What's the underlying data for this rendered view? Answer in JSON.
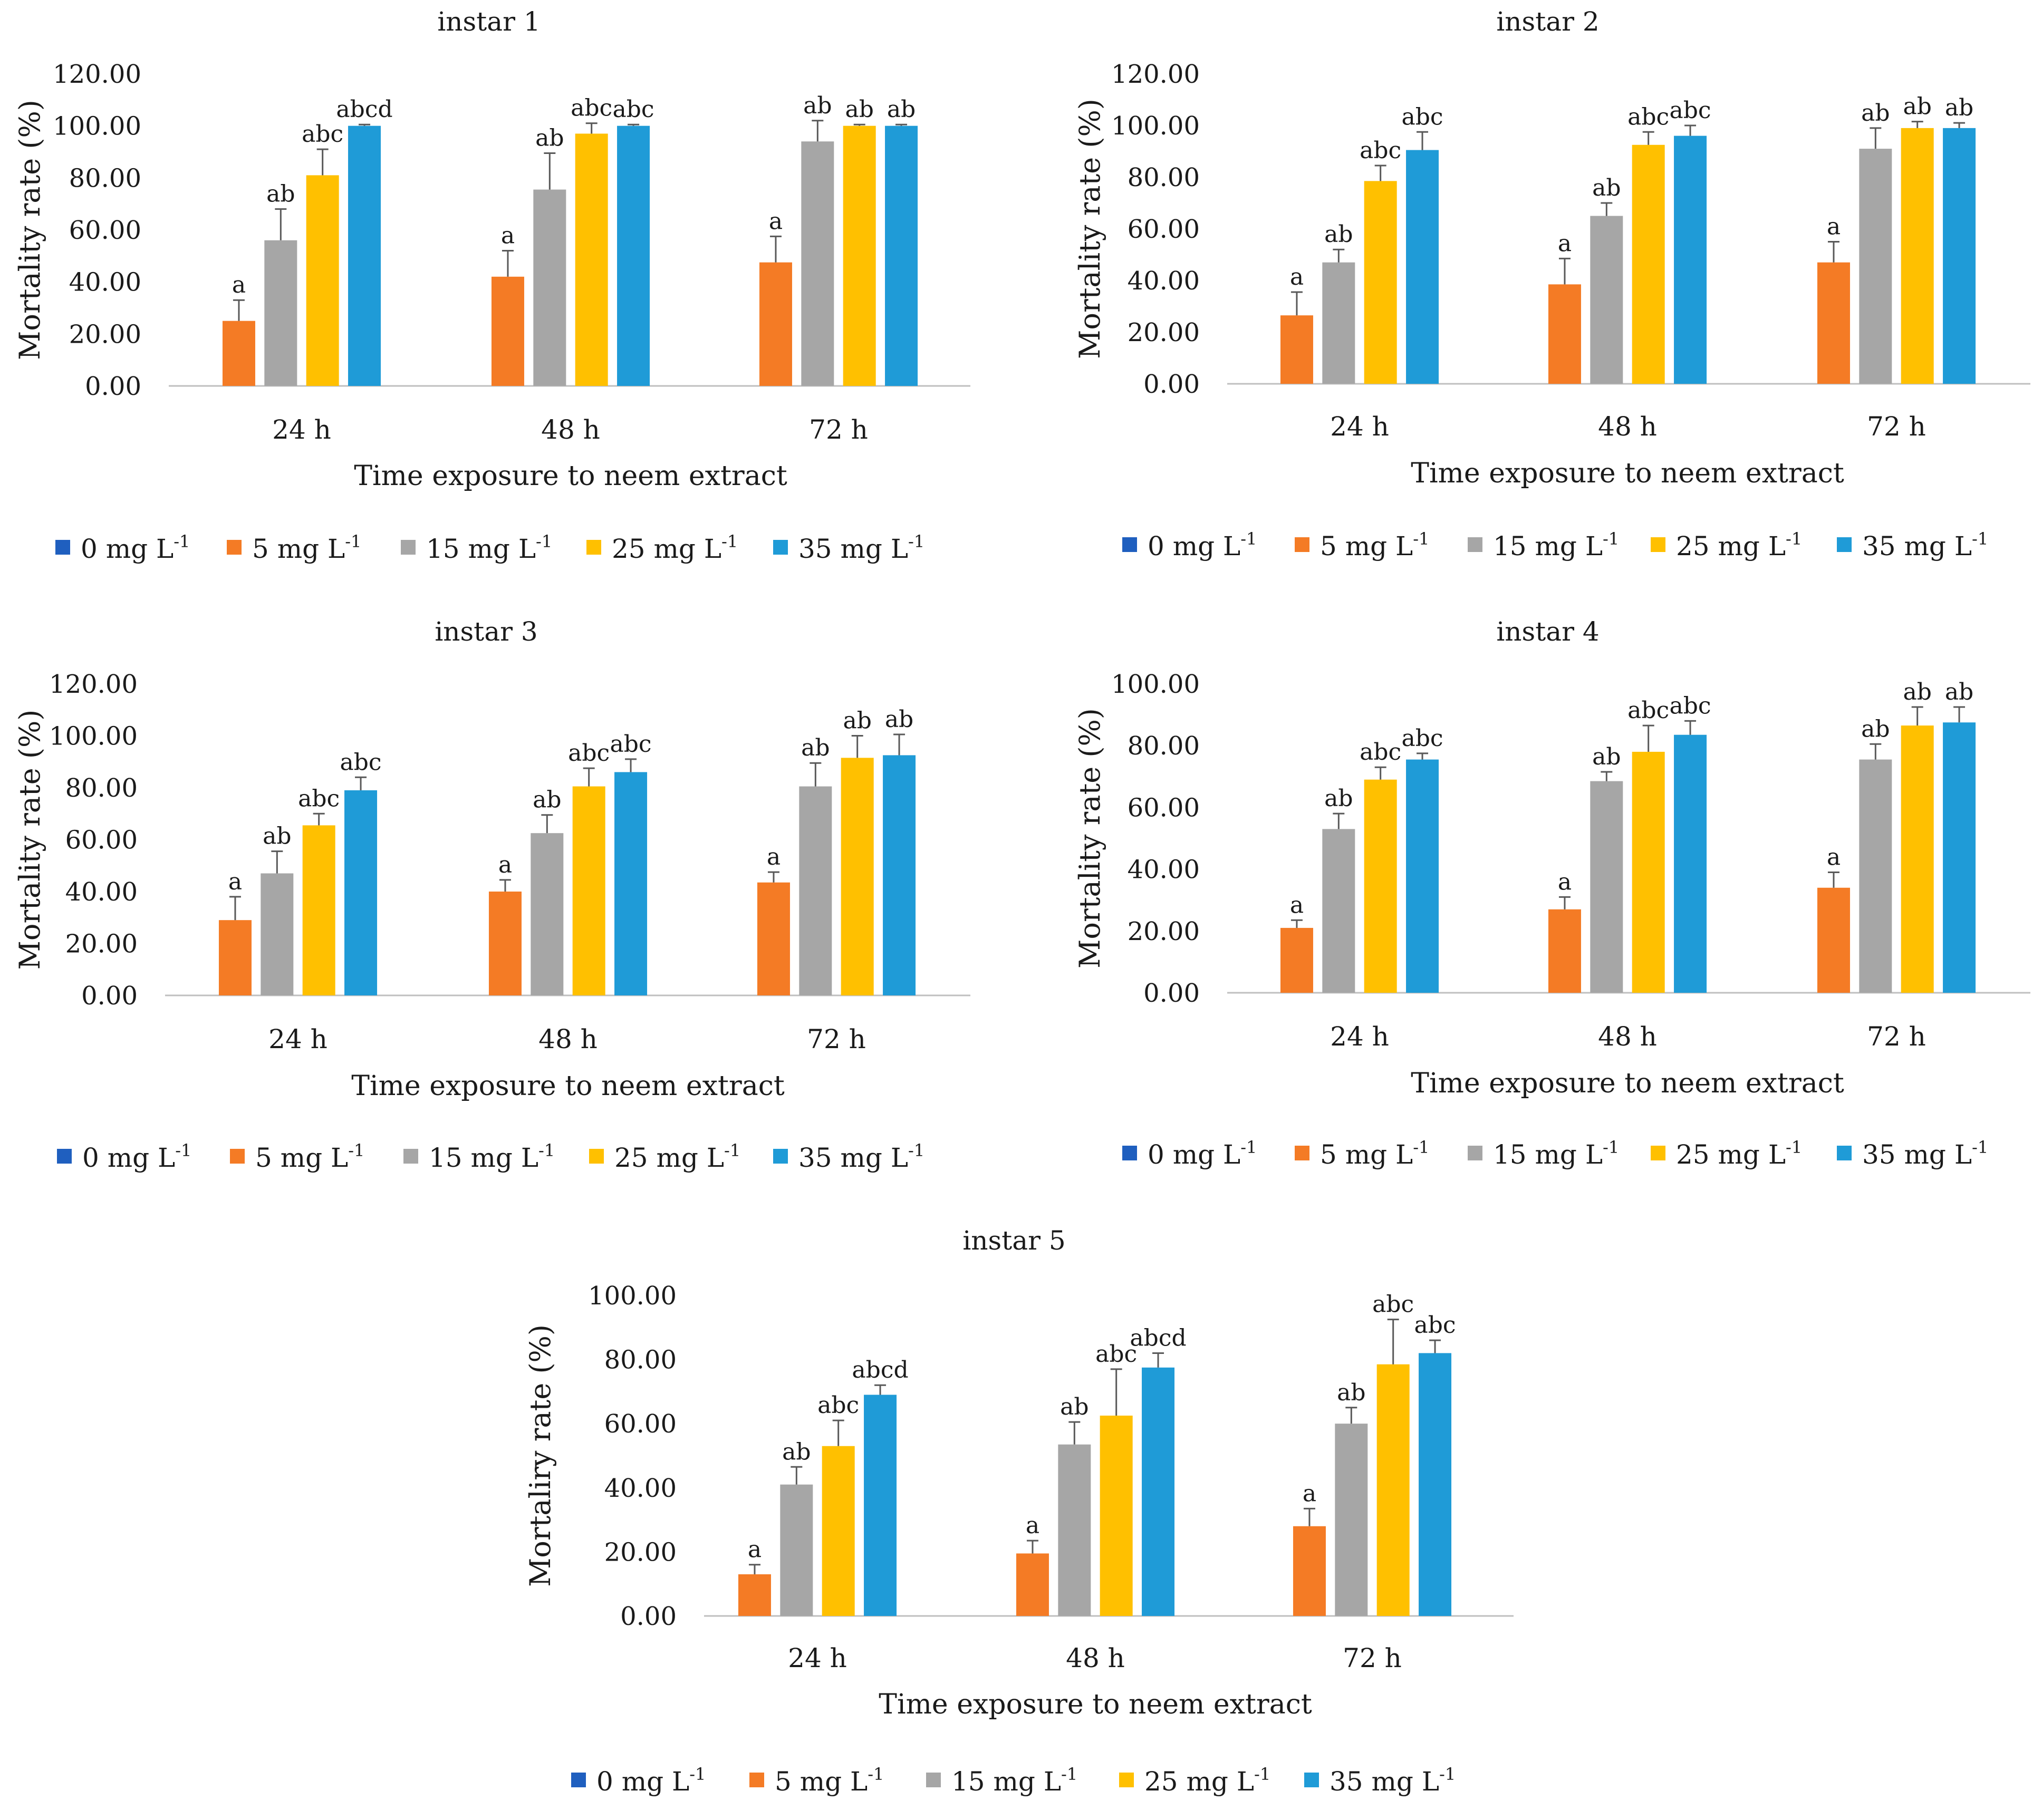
{
  "colors": {
    "0 mg L-1": "#1f5fbf",
    "5 mg L-1": "#f47b25",
    "15 mg L-1": "#a6a6a6",
    "25 mg L-1": "#ffc000",
    "35 mg L-1": "#1f9bd7",
    "axis": "#bfbfbf",
    "errorbar": "#595959"
  },
  "legend_items": [
    {
      "base": "0 mg L",
      "sup": "-1"
    },
    {
      "base": "5 mg L",
      "sup": "-1"
    },
    {
      "base": "15 mg L",
      "sup": "-1"
    },
    {
      "base": "25 mg L",
      "sup": "-1"
    },
    {
      "base": "35 mg L",
      "sup": "-1"
    }
  ],
  "chart_data": [
    {
      "type": "bar",
      "title": "instar 1",
      "xlabel": "Time exposure to neem extract",
      "ylabel": "Mortality rate (%)",
      "ylim": [
        0,
        120
      ],
      "ytick_labels": [
        "0.00",
        "20.00",
        "40.00",
        "60.00",
        "80.00",
        "100.00",
        "120.00"
      ],
      "categories": [
        "24 h",
        "48 h",
        "72 h"
      ],
      "series": [
        {
          "name": "0 mg L-1",
          "values": [
            0,
            0,
            0
          ]
        },
        {
          "name": "5 mg L-1",
          "values": [
            25,
            42,
            47.5
          ],
          "errors": [
            8,
            10,
            10
          ],
          "labels": [
            "a",
            "a",
            "a"
          ]
        },
        {
          "name": "15 mg L-1",
          "values": [
            56,
            75.5,
            94
          ],
          "errors": [
            12,
            14,
            8
          ],
          "labels": [
            "ab",
            "ab",
            "ab"
          ]
        },
        {
          "name": "25 mg L-1",
          "values": [
            81,
            97,
            100
          ],
          "errors": [
            10,
            4,
            0.5
          ],
          "labels": [
            "abc",
            "abc",
            "ab"
          ]
        },
        {
          "name": "35 mg L-1",
          "values": [
            100,
            100,
            100
          ],
          "errors": [
            0.5,
            0.5,
            0.5
          ],
          "labels": [
            "abcd",
            "abc",
            "ab"
          ]
        }
      ],
      "legend": "bottom"
    },
    {
      "type": "bar",
      "title": "instar 2",
      "xlabel": "Time exposure to neem extract",
      "ylabel": "Mortality rate (%)",
      "ylim": [
        0,
        120
      ],
      "ytick_labels": [
        "0.00",
        "20.00",
        "40.00",
        "60.00",
        "80.00",
        "100.00",
        "120.00"
      ],
      "categories": [
        "24 h",
        "48 h",
        "72 h"
      ],
      "series": [
        {
          "name": "0 mg L-1",
          "values": [
            0,
            0,
            0
          ]
        },
        {
          "name": "5 mg L-1",
          "values": [
            26.5,
            38.5,
            47
          ],
          "errors": [
            9,
            10,
            8
          ],
          "labels": [
            "a",
            "a",
            "a"
          ]
        },
        {
          "name": "15 mg L-1",
          "values": [
            47,
            65,
            91
          ],
          "errors": [
            5,
            5,
            8
          ],
          "labels": [
            "ab",
            "ab",
            "ab"
          ]
        },
        {
          "name": "25 mg L-1",
          "values": [
            78.5,
            92.5,
            99
          ],
          "errors": [
            6,
            5,
            2.5
          ],
          "labels": [
            "abc",
            "abc",
            "ab"
          ]
        },
        {
          "name": "35 mg L-1",
          "values": [
            90.5,
            96,
            99
          ],
          "errors": [
            7,
            4,
            2
          ],
          "labels": [
            "abc",
            "abc",
            "ab"
          ]
        }
      ],
      "legend": "bottom"
    },
    {
      "type": "bar",
      "title": "instar 3",
      "xlabel": "Time exposure to neem extract",
      "ylabel": "Mortality rate (%)",
      "ylim": [
        0,
        120
      ],
      "ytick_labels": [
        "0.00",
        "20.00",
        "40.00",
        "60.00",
        "80.00",
        "100.00",
        "120.00"
      ],
      "categories": [
        "24 h",
        "48 h",
        "72 h"
      ],
      "series": [
        {
          "name": "0 mg L-1",
          "values": [
            0,
            0,
            0
          ]
        },
        {
          "name": "5 mg L-1",
          "values": [
            29,
            40,
            43.5
          ],
          "errors": [
            9,
            4.5,
            4
          ],
          "labels": [
            "a",
            "a",
            "a"
          ]
        },
        {
          "name": "15 mg L-1",
          "values": [
            47,
            62.5,
            80.5
          ],
          "errors": [
            8.5,
            7,
            9
          ],
          "labels": [
            "ab",
            "ab",
            "ab"
          ]
        },
        {
          "name": "25 mg L-1",
          "values": [
            65.5,
            80.5,
            91.5
          ],
          "errors": [
            4.5,
            7,
            8.5
          ],
          "labels": [
            "abc",
            "abc",
            "ab"
          ]
        },
        {
          "name": "35 mg L-1",
          "values": [
            79,
            86,
            92.5
          ],
          "errors": [
            5,
            5,
            8
          ],
          "labels": [
            "abc",
            "abc",
            "ab"
          ]
        }
      ],
      "legend": "bottom"
    },
    {
      "type": "bar",
      "title": "instar 4",
      "xlabel": "Time exposure to neem extract",
      "ylabel": "Mortality rate (%)",
      "ylim": [
        0,
        100
      ],
      "ytick_labels": [
        "0.00",
        "20.00",
        "40.00",
        "60.00",
        "80.00",
        "100.00"
      ],
      "categories": [
        "24 h",
        "48 h",
        "72 h"
      ],
      "series": [
        {
          "name": "0 mg L-1",
          "values": [
            0,
            0,
            0
          ]
        },
        {
          "name": "5 mg L-1",
          "values": [
            21,
            27,
            34
          ],
          "errors": [
            2.5,
            4,
            5
          ],
          "labels": [
            "a",
            "a",
            "a"
          ]
        },
        {
          "name": "15 mg L-1",
          "values": [
            53,
            68.5,
            75.5
          ],
          "errors": [
            5,
            3,
            5
          ],
          "labels": [
            "ab",
            "ab",
            "ab"
          ]
        },
        {
          "name": "25 mg L-1",
          "values": [
            69,
            78,
            86.5
          ],
          "errors": [
            4,
            8.5,
            6
          ],
          "labels": [
            "abc",
            "abc",
            "ab"
          ]
        },
        {
          "name": "35 mg L-1",
          "values": [
            75.5,
            83.5,
            87.5
          ],
          "errors": [
            2,
            4.5,
            5
          ],
          "labels": [
            "abc",
            "abc",
            "ab"
          ]
        }
      ],
      "legend": "bottom"
    },
    {
      "type": "bar",
      "title": "instar 5",
      "xlabel": "Time exposure to neem extract",
      "ylabel": "Mortaliry rate (%)",
      "ylim": [
        0,
        100
      ],
      "ytick_labels": [
        "0.00",
        "20.00",
        "40.00",
        "60.00",
        "80.00",
        "100.00"
      ],
      "categories": [
        "24 h",
        "48 h",
        "72 h"
      ],
      "series": [
        {
          "name": "0 mg L-1",
          "values": [
            0,
            0,
            0
          ]
        },
        {
          "name": "5 mg L-1",
          "values": [
            13,
            19.5,
            28
          ],
          "errors": [
            3,
            4,
            5.5
          ],
          "labels": [
            "a",
            "a",
            "a"
          ]
        },
        {
          "name": "15 mg L-1",
          "values": [
            41,
            53.5,
            60
          ],
          "errors": [
            5.5,
            7,
            5
          ],
          "labels": [
            "ab",
            "ab",
            "ab"
          ]
        },
        {
          "name": "25 mg L-1",
          "values": [
            53,
            62.5,
            78.5
          ],
          "errors": [
            8,
            14.5,
            14
          ],
          "labels": [
            "abc",
            "abc",
            "abc"
          ]
        },
        {
          "name": "35 mg L-1",
          "values": [
            69,
            77.5,
            82
          ],
          "errors": [
            3,
            4.5,
            4
          ],
          "labels": [
            "abcd",
            "abcd",
            "abc"
          ]
        }
      ],
      "legend": "bottom"
    }
  ]
}
